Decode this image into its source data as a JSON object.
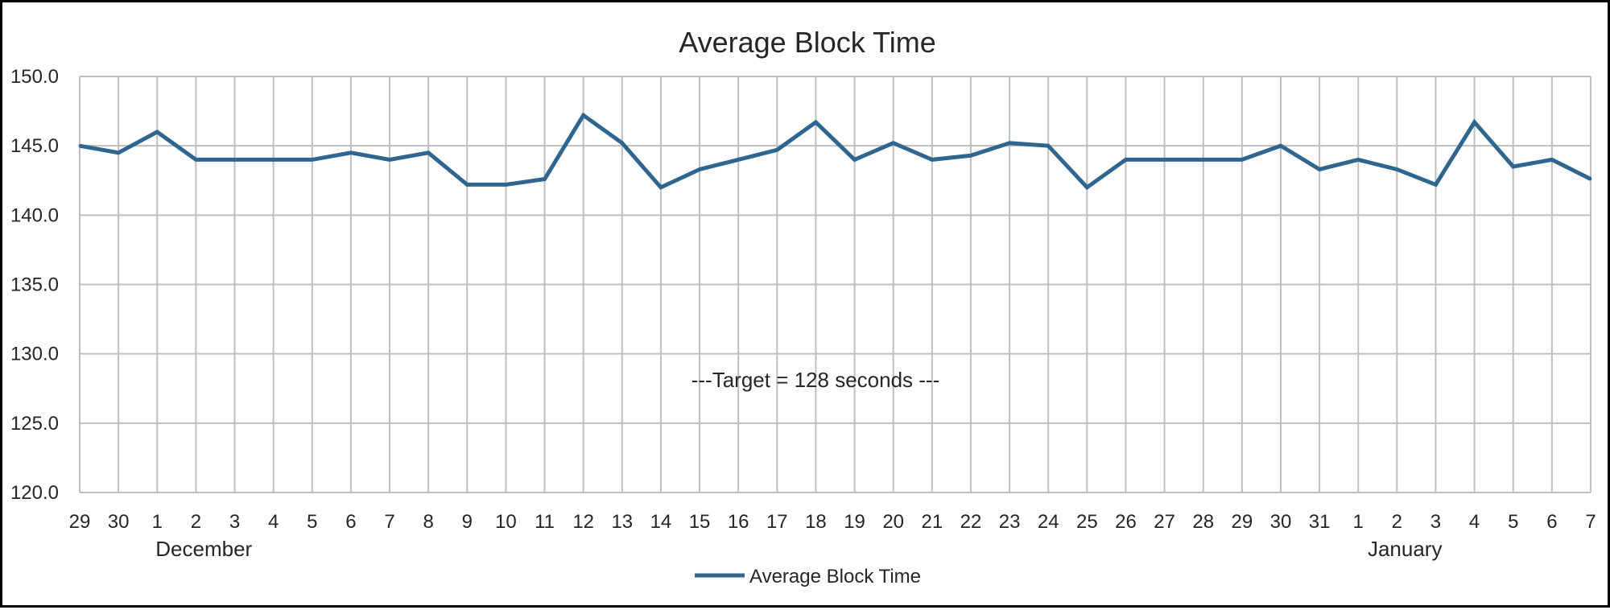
{
  "chart_data": {
    "type": "line",
    "title": "Average Block Time",
    "xlabel": "",
    "ylabel": "",
    "categories": [
      "29",
      "30",
      "1",
      "2",
      "3",
      "4",
      "5",
      "6",
      "7",
      "8",
      "9",
      "10",
      "11",
      "12",
      "13",
      "14",
      "15",
      "16",
      "17",
      "18",
      "19",
      "20",
      "21",
      "22",
      "23",
      "24",
      "25",
      "26",
      "27",
      "28",
      "29",
      "30",
      "31",
      "1",
      "2",
      "3",
      "4",
      "5",
      "6",
      "7"
    ],
    "month_labels": [
      {
        "label": "December",
        "at_index": 2
      },
      {
        "label": "January",
        "at_index": 33
      }
    ],
    "series": [
      {
        "name": "Average Block Time",
        "color": "#2E6690",
        "values": [
          145.0,
          144.5,
          146.0,
          144.0,
          144.0,
          144.0,
          144.0,
          144.5,
          144.0,
          144.5,
          142.2,
          142.2,
          142.6,
          147.2,
          145.2,
          142.0,
          143.3,
          144.0,
          144.7,
          146.7,
          144.0,
          145.2,
          144.0,
          144.3,
          145.2,
          145.0,
          142.0,
          144.0,
          144.0,
          144.0,
          144.0,
          145.0,
          143.3,
          144.0,
          143.3,
          142.2,
          146.7,
          143.5,
          144.0,
          142.6
        ]
      }
    ],
    "ylim": [
      120.0,
      150.0
    ],
    "yticks": [
      "120.0",
      "125.0",
      "130.0",
      "135.0",
      "140.0",
      "145.0",
      "150.0"
    ],
    "grid": true,
    "legend": "bottom-center",
    "annotation": "---Target = 128 seconds ---"
  }
}
